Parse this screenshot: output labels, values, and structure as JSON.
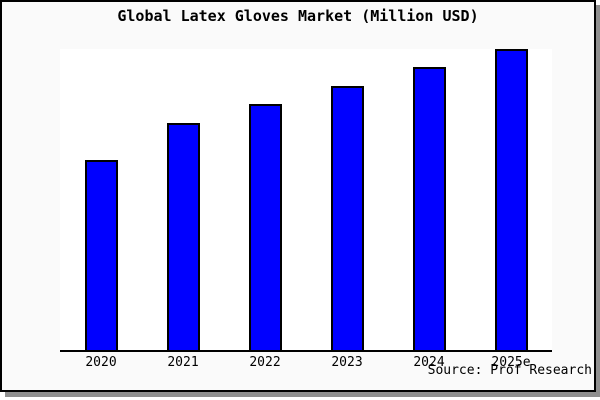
{
  "window": {
    "background_color": "#fafafa",
    "border_color": "#000000",
    "shadow_color": "#8f8f8f"
  },
  "chart_data": {
    "type": "bar",
    "title": "Global Latex Gloves Market (Million USD)",
    "series_name": "Global Latex Gloves Market",
    "categories": [
      "2020",
      "2021",
      "2022",
      "2023",
      "2024",
      "2025e"
    ],
    "values": [
      63.1,
      75.4,
      81.7,
      87.7,
      94.0,
      100.0
    ],
    "value_scale": "relative height, percent of tallest bar (chart displays no y-axis ticks or value labels)",
    "xlabel": "",
    "ylabel": "",
    "ylim": [
      0,
      100
    ],
    "y_axis_visible": false,
    "gridlines": false,
    "legend_visible": false,
    "bar_color": "#0000ff",
    "bar_border_color": "#000000",
    "axis_line_color": "#000000",
    "plot_background": "#ffffff"
  },
  "footer": {
    "source_label": "Source: Prof Research"
  }
}
